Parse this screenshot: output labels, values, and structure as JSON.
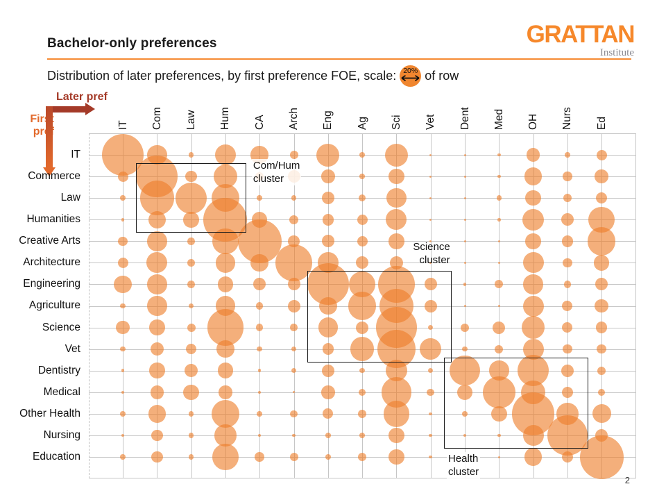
{
  "slide": {
    "title": "Bachelor-only preferences",
    "subtitle_prefix": "Distribution of later preferences, by first preference FOE, scale:",
    "subtitle_suffix": "of row",
    "scale_label": "20%",
    "page_number": "2",
    "logo": {
      "name": "GRATTAN",
      "sub": "Institute"
    }
  },
  "axes": {
    "x_title": "Later pref",
    "y_title_line1": "First",
    "y_title_line2": "pref"
  },
  "chart_data": {
    "type": "bubble-matrix",
    "unit": "percent of row preferences",
    "legend": {
      "value": 20,
      "label": "20%",
      "meaning": "circle diameter scale: 20% of row"
    },
    "columns": [
      "IT",
      "Com",
      "Law",
      "Hum",
      "CA",
      "Arch",
      "Eng",
      "Ag",
      "Sci",
      "Vet",
      "Dent",
      "Med",
      "OH",
      "Nurs",
      "Ed"
    ],
    "rows": [
      "IT",
      "Commerce",
      "Law",
      "Humanities",
      "Creative Arts",
      "Architecture",
      "Engineering",
      "Agriculture",
      "Science",
      "Vet",
      "Dentistry",
      "Medical",
      "Other Health",
      "Nursing",
      "Education"
    ],
    "values": [
      [
        40,
        19,
        5,
        20,
        17,
        8,
        22,
        5,
        22,
        2,
        2,
        3,
        13,
        5,
        10
      ],
      [
        10,
        40,
        11,
        23,
        8,
        12,
        13,
        5,
        15,
        2,
        2,
        3,
        17,
        9,
        13
      ],
      [
        5,
        33,
        30,
        27,
        5,
        5,
        12,
        7,
        19,
        2,
        2,
        5,
        15,
        8,
        11
      ],
      [
        3,
        17,
        15,
        42,
        15,
        9,
        11,
        10,
        20,
        2,
        2,
        3,
        21,
        12,
        25
      ],
      [
        9,
        19,
        7,
        25,
        42,
        11,
        12,
        10,
        15,
        2,
        2,
        2,
        15,
        11,
        27
      ],
      [
        10,
        20,
        7,
        19,
        17,
        35,
        20,
        12,
        13,
        2,
        2,
        2,
        20,
        9,
        15
      ],
      [
        17,
        19,
        7,
        15,
        12,
        12,
        40,
        25,
        35,
        12,
        3,
        8,
        19,
        7,
        12
      ],
      [
        5,
        19,
        5,
        19,
        7,
        12,
        17,
        27,
        33,
        12,
        2,
        2,
        20,
        10,
        13
      ],
      [
        13,
        15,
        8,
        35,
        7,
        7,
        19,
        12,
        39,
        5,
        8,
        12,
        22,
        10,
        11
      ],
      [
        5,
        13,
        10,
        17,
        5,
        5,
        11,
        23,
        37,
        21,
        5,
        8,
        20,
        9,
        9
      ],
      [
        3,
        15,
        13,
        15,
        3,
        5,
        12,
        5,
        21,
        5,
        29,
        19,
        30,
        12,
        8
      ],
      [
        3,
        13,
        15,
        13,
        3,
        2,
        13,
        7,
        29,
        7,
        15,
        31,
        23,
        11,
        7
      ],
      [
        5,
        17,
        5,
        27,
        5,
        7,
        10,
        8,
        25,
        3,
        5,
        15,
        41,
        21,
        18
      ],
      [
        3,
        11,
        5,
        21,
        3,
        3,
        5,
        5,
        15,
        3,
        3,
        3,
        20,
        39,
        12
      ],
      [
        5,
        11,
        5,
        25,
        9,
        8,
        5,
        8,
        15,
        3,
        2,
        2,
        17,
        11,
        42
      ]
    ],
    "clusters": [
      {
        "lines": [
          "Com/Hum",
          "cluster"
        ],
        "row_start": 1,
        "row_end": 3,
        "col_start": 1,
        "col_end": 3,
        "label_pos": "right-of-top"
      },
      {
        "lines": [
          "Science",
          "cluster"
        ],
        "row_start": 6,
        "row_end": 9,
        "col_start": 6,
        "col_end": 9,
        "label_pos": "above-right"
      },
      {
        "lines": [
          "Health",
          "cluster"
        ],
        "row_start": 10,
        "row_end": 13,
        "col_start": 10,
        "col_end": 13,
        "label_pos": "below-left"
      }
    ],
    "colors": {
      "bubble": "#EE7E2A",
      "legend_circle": "#F0862F",
      "accent_rule": "#F68B33",
      "later_pref": "#A43A28",
      "first_pref": "#E2692B",
      "gridline": "#C6C6C6"
    }
  }
}
